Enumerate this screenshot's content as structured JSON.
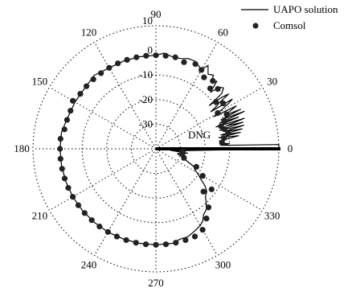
{
  "chart_data": {
    "type": "polar",
    "legend_position": "top-right",
    "legend": [
      {
        "label": "UAPO solution",
        "style": "line"
      },
      {
        "label": "Comsol",
        "style": "marker"
      }
    ],
    "radial_axis": {
      "min": -40,
      "max": 10,
      "ticks": [
        10,
        0,
        -10,
        -20,
        -30
      ],
      "tick_labels": [
        "10",
        "0",
        "-10",
        "-20",
        "-30"
      ]
    },
    "angular_axis": {
      "ticks": [
        0,
        30,
        60,
        90,
        120,
        150,
        180,
        210,
        240,
        270,
        300,
        330
      ],
      "tick_labels": [
        "0",
        "30",
        "60",
        "90",
        "120",
        "150",
        "180",
        "210",
        "240",
        "270",
        "300",
        "330"
      ]
    },
    "annotation": "DNG",
    "uapo_solution": {
      "theta": [
        0,
        1,
        2,
        3,
        4,
        5,
        6,
        7,
        8,
        9,
        10,
        11,
        12,
        13,
        14,
        15,
        16,
        17,
        18,
        19,
        20,
        21,
        22,
        23,
        24,
        25,
        26,
        27,
        28,
        29,
        30,
        31,
        32,
        33,
        34,
        35,
        36,
        37,
        38,
        39,
        40,
        42,
        44,
        46,
        48,
        50,
        52,
        55,
        58,
        60,
        63,
        66,
        70,
        75,
        80,
        85,
        90,
        100,
        110,
        120,
        130,
        140,
        150,
        160,
        170,
        180,
        190,
        200,
        210,
        220,
        230,
        240,
        250,
        260,
        270,
        280,
        285,
        290,
        295,
        300,
        303,
        306,
        310,
        313,
        316,
        320,
        323,
        326,
        329,
        332,
        335,
        338,
        341,
        344,
        347,
        350,
        352,
        354,
        356,
        358,
        360
      ],
      "r": [
        10,
        10,
        10,
        -13,
        -10,
        -14,
        -12,
        -14,
        -10,
        -6,
        -14,
        -5,
        -13,
        -4,
        -11,
        -3,
        -13,
        -3,
        -10,
        -2,
        -14,
        -4,
        -12,
        -1,
        -11,
        -2,
        -9,
        -6,
        -3,
        -13,
        -11,
        -8,
        -5,
        -3,
        -13,
        -10,
        -8,
        -3,
        -6,
        -12,
        -5,
        -3,
        -4,
        -8,
        -3,
        -5,
        -2,
        -3,
        0,
        -3,
        -2,
        -1,
        -1,
        -2,
        -2,
        -1,
        -2,
        -2,
        -2,
        -2,
        -1,
        -2,
        -2,
        -2,
        -1,
        -1,
        -1,
        -1,
        -1,
        -1,
        -1,
        -1,
        -1,
        -1,
        -1,
        -1,
        -2,
        -2,
        -3,
        -4,
        -5,
        -7,
        -8,
        -10,
        -12,
        -13,
        -15,
        -18,
        -20,
        -22,
        -23,
        -26,
        -28,
        -29,
        -31,
        -30,
        -27,
        -34,
        -29,
        -22,
        10
      ]
    },
    "comsol": {
      "theta": [
        5,
        9,
        12,
        16,
        19,
        22,
        26,
        30,
        34,
        38,
        44,
        48,
        50,
        56,
        60,
        65,
        72,
        78,
        84,
        90,
        96,
        102,
        108,
        114,
        120,
        126,
        132,
        138,
        144,
        150,
        156,
        162,
        168,
        174,
        180,
        186,
        192,
        198,
        204,
        210,
        216,
        222,
        228,
        234,
        240,
        246,
        252,
        258,
        264,
        270,
        276,
        282,
        288,
        294,
        300,
        306,
        312,
        318,
        324,
        330,
        336,
        342,
        348,
        354
      ],
      "r": [
        -13,
        -12,
        -10,
        -11,
        -12,
        -10,
        -8,
        -11,
        -7,
        -9,
        -5,
        -7,
        -4,
        -5,
        -3,
        -2,
        -3,
        -2,
        -2,
        -2,
        -2,
        -2,
        -2,
        -2,
        -2,
        -2,
        -2,
        -2,
        -2,
        -1,
        -2,
        -2,
        -2,
        -1,
        -1,
        -1,
        -1,
        -1,
        -1,
        -1,
        -1,
        -1,
        -1,
        -1,
        -1,
        -1,
        -1,
        -1,
        -1,
        -1,
        -1,
        -1,
        -1,
        -1,
        -2,
        -5,
        -8,
        -14,
        -12,
        -18,
        -22,
        -28,
        -29,
        -29
      ]
    }
  }
}
